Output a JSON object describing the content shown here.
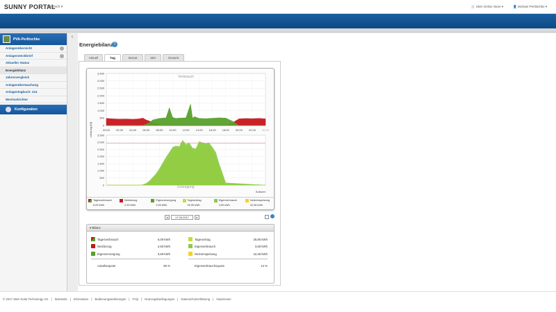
{
  "header": {
    "logo": "SUNNY PORTAL",
    "language": "Deutsch",
    "shop": "SMA Online Store",
    "user": "Michael Perlitschke"
  },
  "sidebar": {
    "plant_name": "PVA-Perlitschke",
    "items": [
      {
        "label": "Anlagenübersicht"
      },
      {
        "label": "Anlagensteckbrief"
      },
      {
        "label": "Aktueller Status"
      },
      {
        "label": "Energiebilanz"
      },
      {
        "label": "Jahresvergleich"
      },
      {
        "label": "Anlagenüberwachung"
      },
      {
        "label": "Anlagenlogbuch: 214"
      },
      {
        "label": "Wechselrichter"
      }
    ],
    "config": "Konfiguration"
  },
  "page": {
    "title": "Energiebilanz",
    "tabs": [
      {
        "label": "Aktuell"
      },
      {
        "label": "Tag"
      },
      {
        "label": "Monat"
      },
      {
        "label": "Jahr"
      },
      {
        "label": "Gesamt"
      }
    ],
    "active_tab": "Tag",
    "date": "17.06.2017"
  },
  "chart_data": {
    "type": "area",
    "x_ticks": [
      "00:00",
      "02:00",
      "04:00",
      "06:00",
      "08:00",
      "10:00",
      "12:00",
      "14:00",
      "16:00",
      "18:00",
      "20:00",
      "22:00",
      "00:00"
    ],
    "top": {
      "title": "Verbrauch",
      "ylim": [
        0,
        3500
      ],
      "yticks": [
        "3.500",
        "3.000",
        "2.500",
        "2.000",
        "1.500",
        "1.000",
        "500",
        "0"
      ],
      "series": [
        {
          "name": "Netzbezug",
          "color": "#c8161d",
          "x": [
            0,
            1,
            2,
            3,
            4,
            5,
            5.5,
            6,
            6.5,
            7,
            8,
            9,
            10,
            10.5,
            11,
            12,
            13,
            14,
            15,
            16,
            17,
            18,
            19,
            20,
            21,
            22,
            23,
            24
          ],
          "values": [
            480,
            450,
            430,
            440,
            420,
            450,
            500,
            380,
            300,
            200,
            60,
            0,
            0,
            0,
            0,
            0,
            0,
            0,
            0,
            0,
            0,
            0,
            180,
            450,
            470,
            460,
            480,
            450
          ]
        },
        {
          "name": "Eigenversorgung",
          "color": "#5aa02c",
          "x": [
            0,
            1,
            2,
            3,
            4,
            5,
            5.5,
            6,
            6.5,
            7,
            8,
            9,
            9.5,
            10,
            10.5,
            11,
            12,
            12.7,
            13,
            13.3,
            14,
            15,
            16,
            17,
            18,
            19,
            20,
            21,
            22,
            23,
            24
          ],
          "values": [
            0,
            0,
            0,
            0,
            0,
            0,
            0,
            100,
            200,
            380,
            480,
            520,
            1200,
            550,
            480,
            500,
            520,
            1450,
            500,
            600,
            480,
            460,
            490,
            520,
            500,
            300,
            0,
            0,
            0,
            0,
            0
          ]
        }
      ]
    },
    "bottom": {
      "title": "Erzeugung",
      "ylabel": "Leistung [W]",
      "xlabel": "Sollwert",
      "ylim": [
        0,
        3500
      ],
      "yticks": [
        "3.500",
        "3.000",
        "2.500",
        "2.000",
        "1.500",
        "1.000",
        "500",
        "0"
      ],
      "setpoint": 2950,
      "series": [
        {
          "name": "Netzeinspeisung",
          "color": "#f5d228",
          "x": [
            0,
            5,
            5.5,
            6,
            6.5,
            7,
            7.5,
            8,
            9,
            10,
            10.5,
            11,
            11.5,
            12,
            12.5,
            13,
            13.5,
            14,
            15,
            15.5,
            16,
            16.5,
            17,
            17.5,
            18,
            24
          ],
          "values": [
            0,
            0,
            20,
            80,
            200,
            420,
            650,
            950,
            1650,
            2250,
            2500,
            2450,
            2950,
            2600,
            2750,
            2400,
            2300,
            2850,
            2600,
            2750,
            2300,
            1900,
            1200,
            600,
            100,
            0
          ]
        },
        {
          "name": "Eigenverbrauch",
          "color": "#8ccc46",
          "x": [
            0,
            5,
            5.5,
            6,
            6.5,
            7,
            7.5,
            8,
            9,
            10,
            10.5,
            11,
            11.5,
            12,
            12.5,
            13,
            13.5,
            14,
            15,
            15.5,
            16,
            16.5,
            17,
            17.5,
            18,
            24
          ],
          "values": [
            0,
            0,
            30,
            120,
            300,
            550,
            800,
            1150,
            1950,
            2650,
            2750,
            2700,
            3150,
            2850,
            2950,
            2600,
            2550,
            3050,
            2900,
            2950,
            2650,
            2300,
            1500,
            850,
            160,
            0
          ]
        }
      ]
    },
    "legend": [
      {
        "name": "Tagesverbrauch",
        "value": "6,09 kWh",
        "color": "#c8161d",
        "color2": "#5aa02c"
      },
      {
        "name": "Netzbezug",
        "value": "2,50 kWh",
        "color": "#c8161d"
      },
      {
        "name": "Eigenversorgung",
        "value": "3,59 kWh",
        "color": "#5aa02c"
      },
      {
        "name": "Tagesertrag",
        "value": "25,95 kWh",
        "color": "#c5dc3a"
      },
      {
        "name": "Eigenverbrauch",
        "value": "3,59 kWh",
        "color": "#8ccc46"
      },
      {
        "name": "Netzeinspeisung",
        "value": "22,36 kWh",
        "color": "#f5d228"
      }
    ]
  },
  "bilanz": {
    "title": "Bilanz",
    "left": [
      {
        "name": "Tagesverbrauch",
        "value": "6,09 kWh",
        "color": "#c8161d"
      },
      {
        "name": "Netzbezug",
        "value": "2,50 kWh",
        "color": "#c8161d"
      },
      {
        "name": "Eigenversorgung",
        "value": "3,59 kWh",
        "color": "#5aa02c"
      }
    ],
    "right": [
      {
        "name": "Tagesertrag",
        "value": "25,95 kWh",
        "color": "#c5dc3a"
      },
      {
        "name": "Eigenverbrauch",
        "value": "3,59 kWh",
        "color": "#8ccc46"
      },
      {
        "name": "Netzeinspeisung",
        "value": "22,36 kWh",
        "color": "#f5d228"
      }
    ],
    "autarkie_label": "Autarkiequote",
    "autarkie_value": "59 %",
    "eigenverbrauch_label": "Eigenverbrauchsquote",
    "eigenverbrauch_value": "14 %"
  },
  "footer": {
    "links": [
      "© 2017 SMA Solar Technology AG",
      "|",
      "Startseite",
      "|",
      "Information",
      "|",
      "Bedienungsanleitungen",
      "|",
      "FAQ",
      "|",
      "Nutzungsbedingungen",
      "|",
      "Datenschutzerklärung",
      "|",
      "Impressum"
    ]
  }
}
